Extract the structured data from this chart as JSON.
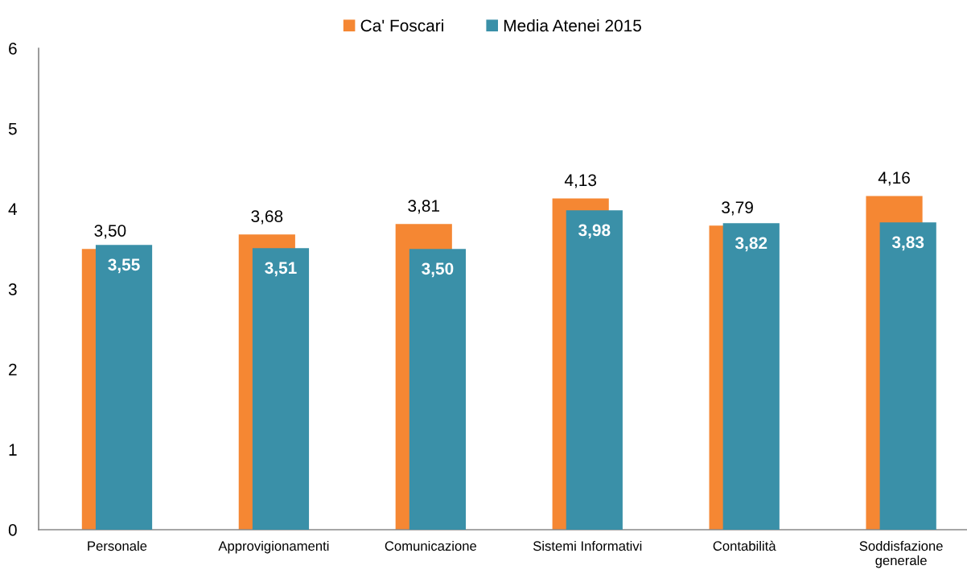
{
  "chart_data": {
    "type": "bar",
    "categories": [
      "Personale",
      "Approvigionamenti",
      "Comunicazione",
      "Sistemi Informativi",
      "Contabilità",
      "Soddisfazione\ngenerale"
    ],
    "series": [
      {
        "name": "Ca' Foscari",
        "color": "#f58733",
        "values": [
          3.5,
          3.68,
          3.81,
          4.13,
          3.79,
          4.16
        ],
        "value_labels": [
          "3,50",
          "3,68",
          "3,81",
          "4,13",
          "3,79",
          "4,16"
        ]
      },
      {
        "name": "Media Atenei 2015",
        "color": "#3a90a8",
        "values": [
          3.55,
          3.51,
          3.5,
          3.98,
          3.82,
          3.83
        ],
        "value_labels": [
          "3,55",
          "3,51",
          "3,50",
          "3,98",
          "3,82",
          "3,83"
        ]
      }
    ],
    "ylim": [
      0,
      6
    ],
    "yticks": [
      0,
      1,
      2,
      3,
      4,
      5,
      6
    ],
    "grid": false,
    "legend": "top"
  }
}
